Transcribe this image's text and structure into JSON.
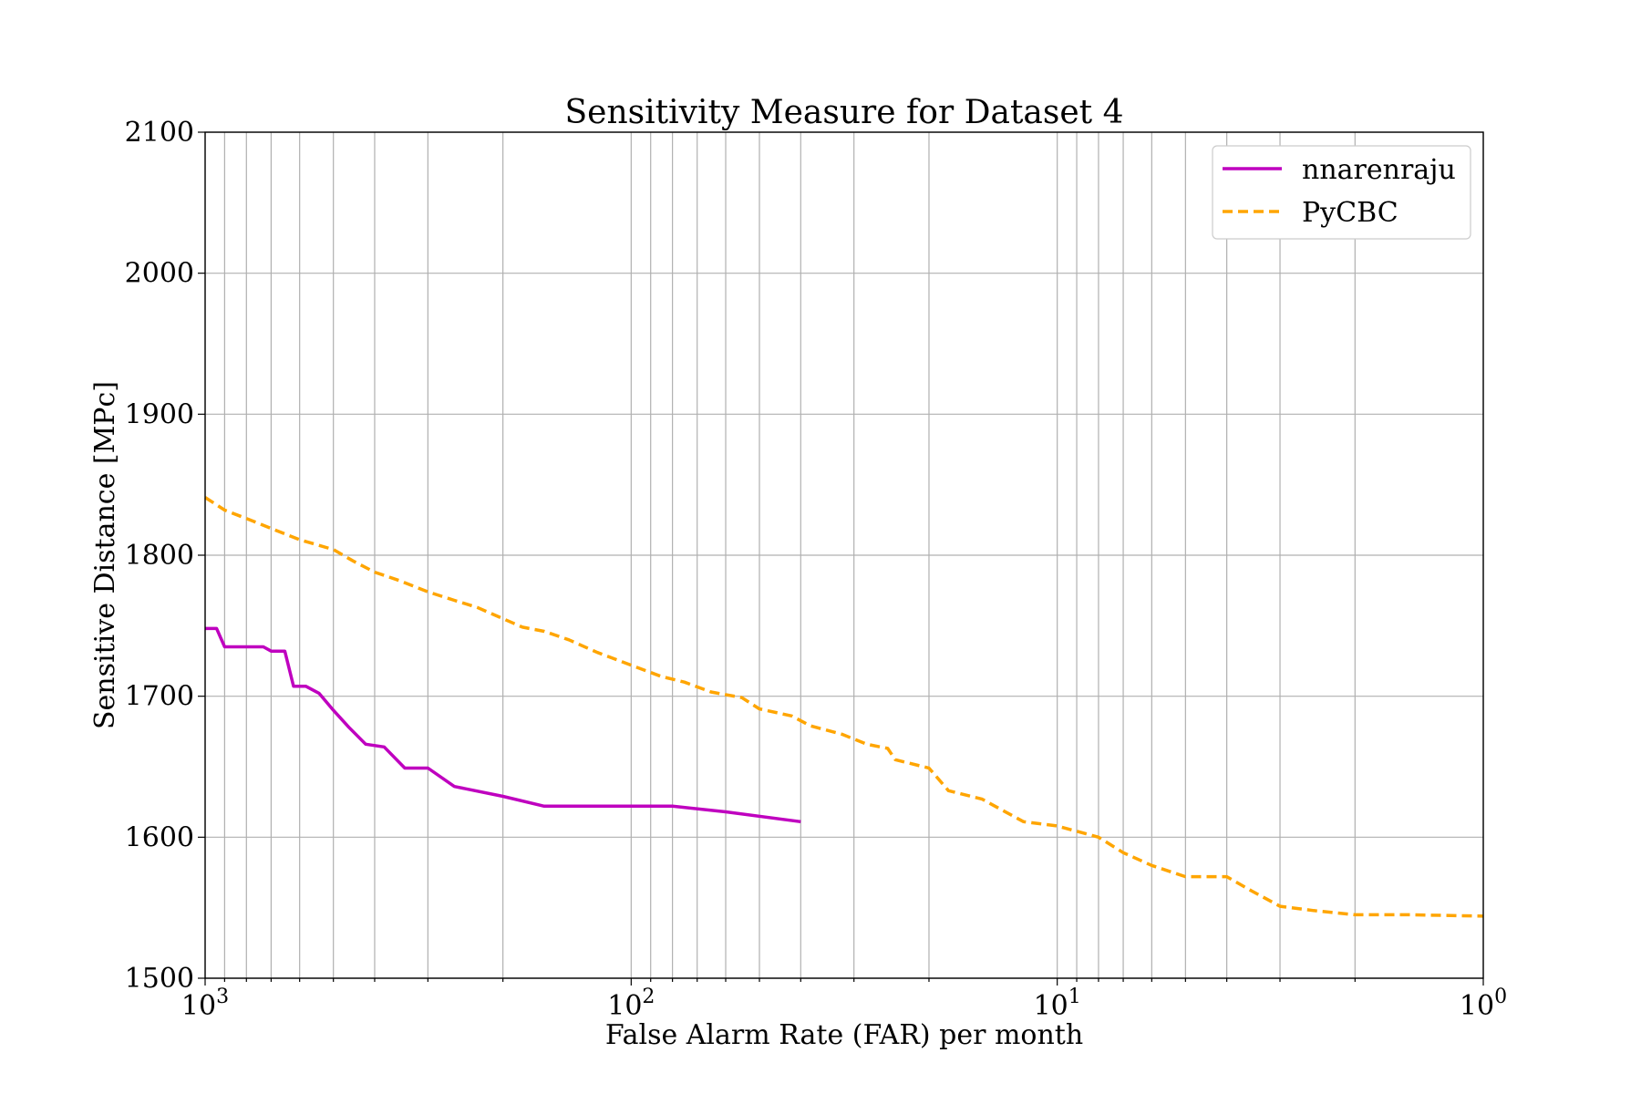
{
  "chart_data": {
    "type": "line",
    "title": "Sensitivity Measure for Dataset 4",
    "xlabel": "False Alarm Rate (FAR) per month",
    "ylabel": "Sensitive Distance [MPc]",
    "xscale": "log",
    "x_reversed": true,
    "xlim": [
      1000,
      1
    ],
    "ylim": [
      1500,
      2100
    ],
    "grid": true,
    "legend_position": "top-right",
    "x_ticks": [
      {
        "base": "10",
        "exp": "3",
        "value": 1000
      },
      {
        "base": "10",
        "exp": "2",
        "value": 100
      },
      {
        "base": "10",
        "exp": "1",
        "value": 10
      },
      {
        "base": "10",
        "exp": "0",
        "value": 1
      }
    ],
    "y_ticks": [
      "1500",
      "1600",
      "1700",
      "1800",
      "1900",
      "2000",
      "2100"
    ],
    "series": [
      {
        "name": "nnarenraju",
        "color": "#bf00bf",
        "style": "solid",
        "points": [
          [
            1000,
            1748
          ],
          [
            940,
            1748
          ],
          [
            900,
            1735
          ],
          [
            820,
            1735
          ],
          [
            730,
            1735
          ],
          [
            700,
            1732
          ],
          [
            650,
            1732
          ],
          [
            620,
            1707
          ],
          [
            580,
            1707
          ],
          [
            540,
            1702
          ],
          [
            500,
            1690
          ],
          [
            460,
            1678
          ],
          [
            420,
            1666
          ],
          [
            380,
            1664
          ],
          [
            340,
            1649
          ],
          [
            300,
            1649
          ],
          [
            260,
            1636
          ],
          [
            200,
            1629
          ],
          [
            160,
            1622
          ],
          [
            120,
            1622
          ],
          [
            100,
            1622
          ],
          [
            80,
            1622
          ],
          [
            60,
            1618
          ],
          [
            40,
            1611
          ]
        ]
      },
      {
        "name": "PyCBC",
        "color": "#ffa500",
        "style": "dashed",
        "points": [
          [
            1000,
            1841
          ],
          [
            900,
            1832
          ],
          [
            800,
            1826
          ],
          [
            700,
            1819
          ],
          [
            600,
            1811
          ],
          [
            500,
            1804
          ],
          [
            450,
            1796
          ],
          [
            400,
            1788
          ],
          [
            350,
            1782
          ],
          [
            300,
            1774
          ],
          [
            260,
            1768
          ],
          [
            230,
            1763
          ],
          [
            200,
            1755
          ],
          [
            180,
            1749
          ],
          [
            160,
            1746
          ],
          [
            140,
            1740
          ],
          [
            120,
            1731
          ],
          [
            100,
            1722
          ],
          [
            85,
            1714
          ],
          [
            75,
            1710
          ],
          [
            65,
            1703
          ],
          [
            55,
            1699
          ],
          [
            50,
            1691
          ],
          [
            42,
            1686
          ],
          [
            38,
            1679
          ],
          [
            32,
            1673
          ],
          [
            28,
            1666
          ],
          [
            25,
            1663
          ],
          [
            24,
            1655
          ],
          [
            20,
            1649
          ],
          [
            18,
            1633
          ],
          [
            15,
            1627
          ],
          [
            14,
            1622
          ],
          [
            12,
            1611
          ],
          [
            10,
            1608
          ],
          [
            8,
            1600
          ],
          [
            7,
            1589
          ],
          [
            6,
            1580
          ],
          [
            5,
            1572
          ],
          [
            4,
            1572
          ],
          [
            3.5,
            1562
          ],
          [
            3,
            1551
          ],
          [
            2.5,
            1548
          ],
          [
            2,
            1545
          ],
          [
            1.5,
            1545
          ],
          [
            1,
            1544
          ]
        ]
      }
    ]
  }
}
